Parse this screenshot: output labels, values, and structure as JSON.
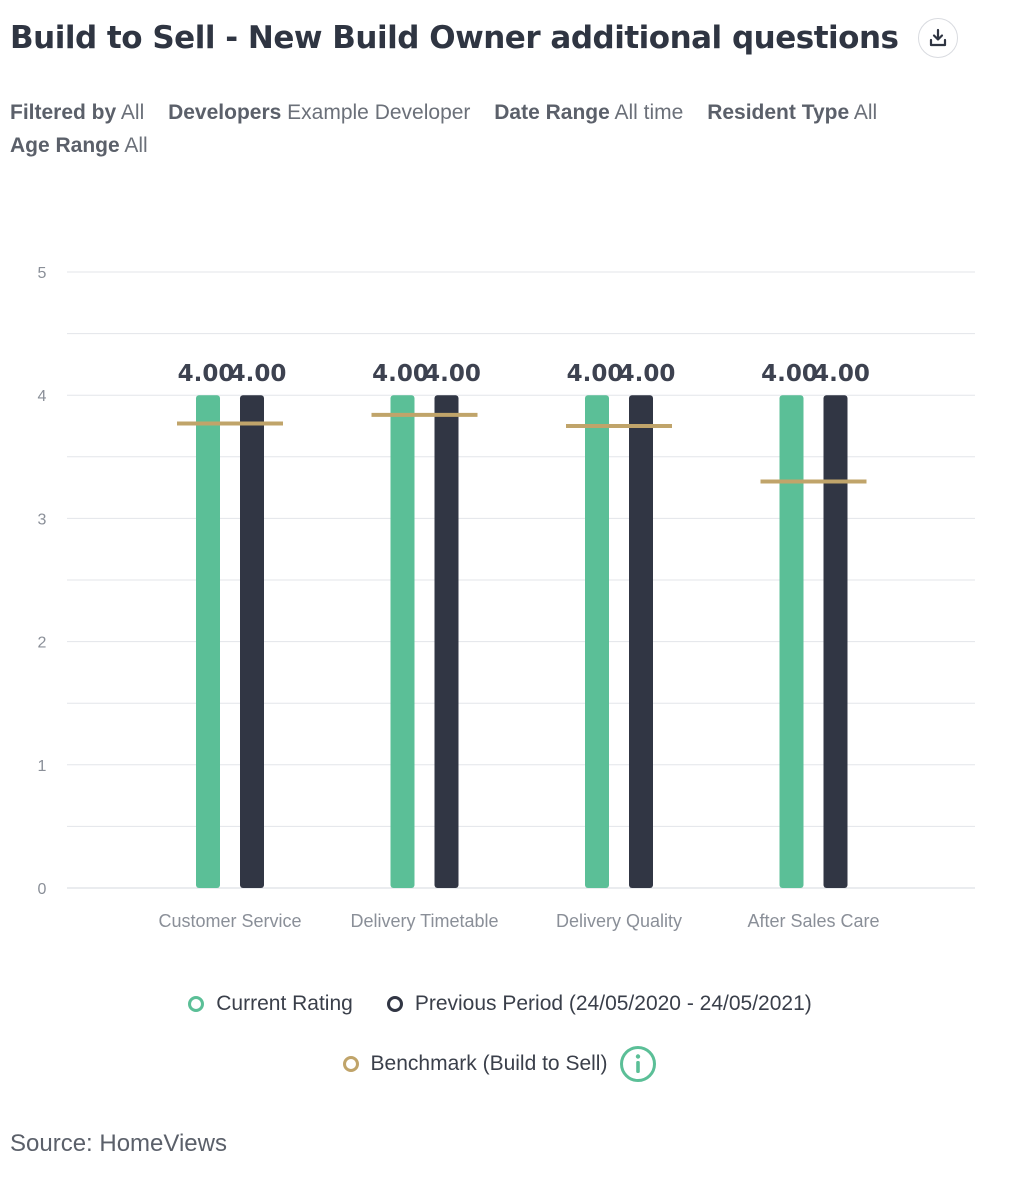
{
  "header": {
    "title": "Build to Sell - New Build Owner additional questions",
    "download_icon": "download-icon"
  },
  "filters": [
    {
      "key": "Filtered by",
      "value": "All"
    },
    {
      "key": "Developers",
      "value": "Example Developer"
    },
    {
      "key": "Date Range",
      "value": "All time"
    },
    {
      "key": "Resident Type",
      "value": "All"
    },
    {
      "key": "Age Range",
      "value": "All"
    }
  ],
  "colors": {
    "current": "#5bbf97",
    "previous": "#313644",
    "benchmark": "#c0a46a",
    "grid": "#e3e5ea",
    "tick": "#8a8f98"
  },
  "chart_data": {
    "type": "bar",
    "categories": [
      "Customer Service",
      "Delivery Timetable",
      "Delivery Quality",
      "After Sales Care"
    ],
    "series": [
      {
        "name": "Current Rating",
        "values": [
          4.0,
          4.0,
          4.0,
          4.0
        ],
        "labels": [
          "4.00",
          "4.00",
          "4.00",
          "4.00"
        ]
      },
      {
        "name": "Previous Period (24/05/2020 - 24/05/2021)",
        "values": [
          4.0,
          4.0,
          4.0,
          4.0
        ],
        "labels": [
          "4.00",
          "4.00",
          "4.00",
          "4.00"
        ]
      }
    ],
    "benchmark": {
      "name": "Benchmark (Build to Sell)",
      "values": [
        3.77,
        3.84,
        3.75,
        3.3
      ]
    },
    "ylim": [
      0,
      5
    ],
    "yticks": [
      "0",
      "1",
      "2",
      "3",
      "4",
      "5"
    ],
    "grid": true,
    "legend_position": "bottom"
  },
  "legend": {
    "current_label": "Current Rating",
    "previous_label": "Previous Period (24/05/2020 - 24/05/2021)",
    "benchmark_label": "Benchmark (Build to Sell)",
    "info_icon": "info-icon"
  },
  "footer": {
    "source": "Source: HomeViews"
  }
}
